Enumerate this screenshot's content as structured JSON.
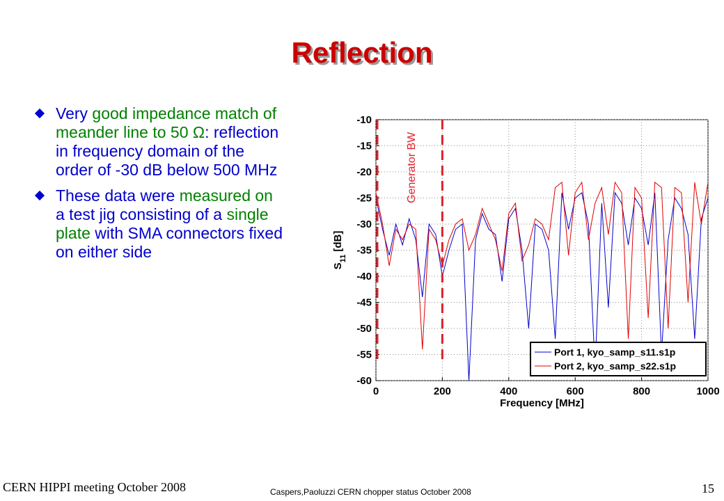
{
  "title": "Reflection",
  "bullets": [
    {
      "segments": [
        {
          "text": "Very ",
          "color": "#0000cc"
        },
        {
          "text": "good impedance match of meander line to 50 Ω",
          "color": "#008000"
        },
        {
          "text": ": reflection in frequency domain of the order of -30 dB below 500 MHz",
          "color": "#0000cc"
        }
      ]
    },
    {
      "segments": [
        {
          "text": "These data were ",
          "color": "#0000cc"
        },
        {
          "text": "measured on ",
          "color": "#008000"
        },
        {
          "text": "a test jig consisting of a ",
          "color": "#0000cc"
        },
        {
          "text": "single plate",
          "color": "#008000"
        },
        {
          "text": " with SMA connectors fixed on either side",
          "color": "#0000cc"
        }
      ]
    }
  ],
  "footer": {
    "left": "CERN HIPPI meeting October 2008",
    "center": "Caspers,Paoluzzi CERN chopper status October 2008",
    "page": "15"
  },
  "chart_data": {
    "type": "line",
    "xlabel": "Frequency [MHz]",
    "ylabel_main": "S",
    "ylabel_sub": "11",
    "ylabel_unit": "[dB]",
    "annotation": "Generator BW",
    "annotation_color": "#e0202a",
    "vlines": [
      0,
      200
    ],
    "xlim": [
      0,
      1000
    ],
    "xticks": [
      0,
      200,
      400,
      600,
      800,
      1000
    ],
    "ylim": [
      -60,
      -10
    ],
    "yticks": [
      -10,
      -15,
      -20,
      -25,
      -30,
      -35,
      -40,
      -45,
      -50,
      -55,
      -60
    ],
    "grid": true,
    "legend": "lower right",
    "x": [
      0,
      20,
      40,
      60,
      80,
      100,
      120,
      140,
      160,
      180,
      200,
      220,
      240,
      260,
      280,
      300,
      320,
      340,
      360,
      380,
      400,
      420,
      440,
      460,
      480,
      500,
      520,
      540,
      560,
      580,
      600,
      620,
      640,
      660,
      680,
      700,
      720,
      740,
      760,
      780,
      800,
      820,
      840,
      860,
      880,
      900,
      920,
      940,
      960,
      980,
      1000
    ],
    "series": [
      {
        "name": "Port 1, kyo_samp_s11.s1p",
        "color": "#0000cc",
        "values": [
          -25,
          -31,
          -36,
          -30,
          -34,
          -29,
          -33,
          -44,
          -30,
          -32,
          -40,
          -35,
          -31,
          -30,
          -60,
          -33,
          -28,
          -31,
          -32,
          -41,
          -29,
          -27,
          -35,
          -50,
          -30,
          -31,
          -35,
          -52,
          -24,
          -31,
          -25,
          -24,
          -30,
          -58,
          -26,
          -46,
          -24,
          -26,
          -34,
          -25,
          -27,
          -34,
          -24,
          -55,
          -33,
          -25,
          -27,
          -32,
          -52,
          -29,
          -25
        ]
      },
      {
        "name": "Port 2, kyo_samp_s22.s1p",
        "color": "#e00000",
        "values": [
          -24,
          -30,
          -38,
          -31,
          -33,
          -30,
          -31,
          -54,
          -31,
          -33,
          -38,
          -33,
          -30,
          -29,
          -35,
          -32,
          -27,
          -30,
          -33,
          -39,
          -28,
          -26,
          -37,
          -34,
          -29,
          -30,
          -33,
          -23,
          -22,
          -36,
          -24,
          -22,
          -33,
          -26,
          -23,
          -32,
          -22,
          -24,
          -52,
          -23,
          -25,
          -48,
          -22,
          -23,
          -50,
          -23,
          -24,
          -45,
          -22,
          -30,
          -22
        ]
      }
    ]
  }
}
